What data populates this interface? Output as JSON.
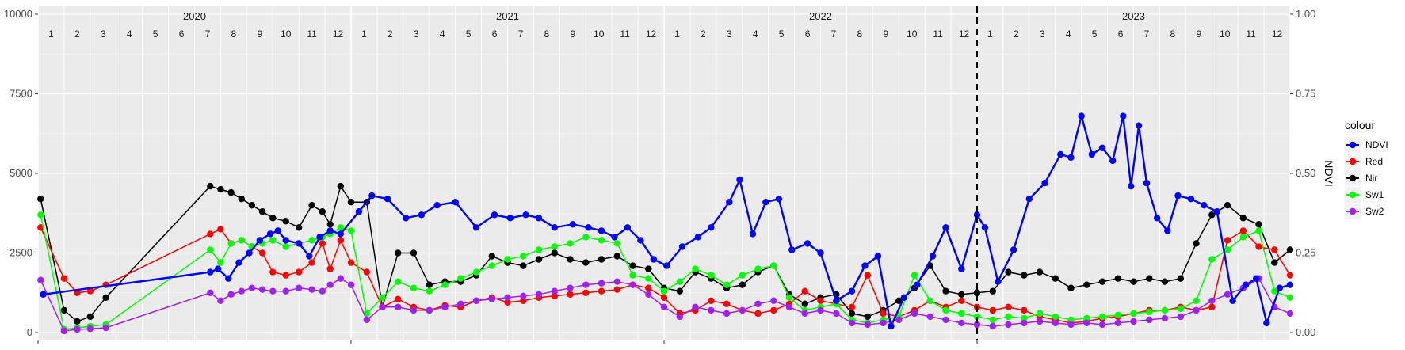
{
  "chart_data": {
    "type": "line",
    "title": "",
    "xlabel": "",
    "ylabel_left": "",
    "ylabel_right": "NDVI",
    "ylim_left": [
      0,
      10000
    ],
    "ylim_right": [
      0,
      1
    ],
    "y_ticks_left": [
      "0",
      "2500",
      "5000",
      "7500",
      "10000"
    ],
    "y_ticks_right": [
      "0.00",
      "0.25",
      "0.50",
      "0.75",
      "1.00"
    ],
    "years": [
      "2020",
      "2021",
      "2022",
      "2023"
    ],
    "months": [
      "1",
      "2",
      "3",
      "4",
      "5",
      "6",
      "7",
      "8",
      "9",
      "10",
      "11",
      "12"
    ],
    "x_range_months": [
      0,
      48
    ],
    "dashed_line_at_month": 36,
    "grid": true,
    "legend": {
      "title": "colour",
      "position": "right",
      "entries": [
        {
          "label": "NDVI",
          "color": "#0000ff"
        },
        {
          "label": "Red",
          "color": "#ff0000"
        },
        {
          "label": "Nir",
          "color": "#000000"
        },
        {
          "label": "Sw1",
          "color": "#00ff00"
        },
        {
          "label": "Sw2",
          "color": "#a020f0"
        }
      ]
    },
    "x_unit": "months since Jan 2020",
    "series": [
      {
        "name": "NDVI",
        "color": "#0000ff",
        "axis": "right",
        "x": [
          0.2,
          6.6,
          6.9,
          7.3,
          7.7,
          8.1,
          8.5,
          8.9,
          9.2,
          9.5,
          10.0,
          10.4,
          10.8,
          11.2,
          11.6,
          12.3,
          12.8,
          13.4,
          14.1,
          14.7,
          15.3,
          16.0,
          16.8,
          17.5,
          18.1,
          18.7,
          19.2,
          19.8,
          20.5,
          21.1,
          21.6,
          22.1,
          22.6,
          23.1,
          23.6,
          24.1,
          24.7,
          25.3,
          25.8,
          26.5,
          26.9,
          27.4,
          27.9,
          28.4,
          28.9,
          29.5,
          30.0,
          30.6,
          31.2,
          31.7,
          32.2,
          32.7,
          33.2,
          33.7,
          34.3,
          34.8,
          35.4,
          36.0,
          36.3,
          36.8,
          37.4,
          38.0,
          38.6,
          39.2,
          39.6,
          40.0,
          40.4,
          40.8,
          41.2,
          41.6,
          41.9,
          42.2,
          42.5,
          42.9,
          43.3,
          43.7,
          44.2,
          44.7,
          45.2,
          45.8,
          46.3,
          46.7,
          47.1,
          47.6,
          48.0
        ],
        "y": [
          0.12,
          0.19,
          0.2,
          0.17,
          0.22,
          0.25,
          0.29,
          0.31,
          0.32,
          0.29,
          0.28,
          0.24,
          0.3,
          0.32,
          0.31,
          0.38,
          0.43,
          0.42,
          0.36,
          0.37,
          0.4,
          0.41,
          0.33,
          0.37,
          0.36,
          0.37,
          0.36,
          0.33,
          0.34,
          0.33,
          0.32,
          0.3,
          0.33,
          0.29,
          0.23,
          0.21,
          0.27,
          0.3,
          0.33,
          0.41,
          0.48,
          0.31,
          0.41,
          0.42,
          0.26,
          0.28,
          0.25,
          0.1,
          0.13,
          0.21,
          0.24,
          0.02,
          0.11,
          0.15,
          0.24,
          0.33,
          0.2,
          0.37,
          0.33,
          0.16,
          0.26,
          0.42,
          0.47,
          0.56,
          0.55,
          0.68,
          0.56,
          0.58,
          0.54,
          0.68,
          0.46,
          0.65,
          0.47,
          0.36,
          0.32,
          0.43,
          0.42,
          0.4,
          0.38,
          0.1,
          0.15,
          0.17,
          0.03,
          0.14,
          0.15
        ]
      },
      {
        "name": "Red",
        "color": "#ff0000",
        "axis": "left",
        "x": [
          0.1,
          1.0,
          1.5,
          2.0,
          2.6,
          6.6,
          7.0,
          7.4,
          7.8,
          8.2,
          8.6,
          9.0,
          9.5,
          10.0,
          10.5,
          10.9,
          11.2,
          11.6,
          12.0,
          12.6,
          13.2,
          13.8,
          14.4,
          15.0,
          15.6,
          16.2,
          16.8,
          17.4,
          18.0,
          18.6,
          19.2,
          19.8,
          20.4,
          21.0,
          21.6,
          22.2,
          22.8,
          23.4,
          24.0,
          24.6,
          25.2,
          25.8,
          26.4,
          27.0,
          27.6,
          28.2,
          28.8,
          29.4,
          30.0,
          30.6,
          31.2,
          31.8,
          32.4,
          33.0,
          33.6,
          34.2,
          34.8,
          35.4,
          36.0,
          36.6,
          37.2,
          37.8,
          38.4,
          39.0,
          39.6,
          40.2,
          40.8,
          41.4,
          42.0,
          42.6,
          43.2,
          43.8,
          44.4,
          45.0,
          45.6,
          46.2,
          46.8,
          47.4,
          48.0
        ],
        "y": [
          3300,
          1700,
          1250,
          1300,
          1500,
          3100,
          3250,
          2800,
          2900,
          2700,
          2500,
          1900,
          1800,
          1900,
          2200,
          2800,
          2000,
          2900,
          2200,
          1900,
          800,
          1050,
          800,
          700,
          850,
          800,
          1000,
          1100,
          950,
          1000,
          1100,
          1150,
          1200,
          1250,
          1300,
          1350,
          1500,
          1400,
          1100,
          600,
          700,
          1000,
          900,
          700,
          600,
          700,
          900,
          1300,
          1000,
          900,
          800,
          1800,
          600,
          500,
          700,
          1000,
          800,
          1000,
          800,
          700,
          800,
          700,
          500,
          400,
          300,
          350,
          450,
          500,
          600,
          700,
          700,
          800,
          700,
          800,
          2900,
          3200,
          2700,
          2600,
          1800
        ]
      },
      {
        "name": "Nir",
        "color": "#000000",
        "axis": "left",
        "x": [
          0.1,
          1.0,
          1.5,
          2.0,
          2.6,
          6.6,
          7.0,
          7.4,
          7.8,
          8.2,
          8.6,
          9.0,
          9.5,
          10.0,
          10.5,
          10.9,
          11.2,
          11.6,
          12.0,
          12.6,
          13.2,
          13.8,
          14.4,
          15.0,
          15.6,
          16.2,
          16.8,
          17.4,
          18.0,
          18.6,
          19.2,
          19.8,
          20.4,
          21.0,
          21.6,
          22.2,
          22.8,
          23.4,
          24.0,
          24.6,
          25.2,
          25.8,
          26.4,
          27.0,
          27.6,
          28.2,
          28.8,
          29.4,
          30.0,
          30.6,
          31.2,
          31.8,
          32.4,
          33.0,
          33.6,
          34.2,
          34.8,
          35.4,
          36.0,
          36.6,
          37.2,
          37.8,
          38.4,
          39.0,
          39.6,
          40.2,
          40.8,
          41.4,
          42.0,
          42.6,
          43.2,
          43.8,
          44.4,
          45.0,
          45.6,
          46.2,
          46.8,
          47.4,
          48.0
        ],
        "y": [
          4200,
          700,
          350,
          500,
          1100,
          4600,
          4500,
          4400,
          4200,
          4000,
          3800,
          3600,
          3500,
          3300,
          4000,
          3800,
          3400,
          4600,
          4100,
          4100,
          800,
          2500,
          2500,
          1500,
          1600,
          1600,
          1800,
          2400,
          2200,
          2100,
          2300,
          2500,
          2300,
          2200,
          2300,
          2400,
          2100,
          2000,
          1400,
          1300,
          1900,
          1700,
          1400,
          1500,
          1900,
          2100,
          1200,
          900,
          1100,
          1200,
          600,
          500,
          700,
          1000,
          1400,
          2100,
          1300,
          1200,
          1250,
          1300,
          1900,
          1800,
          1900,
          1700,
          1400,
          1500,
          1600,
          1700,
          1600,
          1700,
          1600,
          1700,
          2800,
          3700,
          4000,
          3600,
          3400,
          2200,
          2600
        ]
      },
      {
        "name": "Sw1",
        "color": "#00ff00",
        "axis": "left",
        "x": [
          0.1,
          1.0,
          1.5,
          2.0,
          2.6,
          6.6,
          7.0,
          7.4,
          7.8,
          8.2,
          8.6,
          9.0,
          9.5,
          10.0,
          10.5,
          10.9,
          11.2,
          11.6,
          12.0,
          12.6,
          13.2,
          13.8,
          14.4,
          15.0,
          15.6,
          16.2,
          16.8,
          17.4,
          18.0,
          18.6,
          19.2,
          19.8,
          20.4,
          21.0,
          21.6,
          22.2,
          22.8,
          23.4,
          24.0,
          24.6,
          25.2,
          25.8,
          26.4,
          27.0,
          27.6,
          28.2,
          28.8,
          29.4,
          30.0,
          30.6,
          31.2,
          31.8,
          32.4,
          33.0,
          33.6,
          34.2,
          34.8,
          35.4,
          36.0,
          36.6,
          37.2,
          37.8,
          38.4,
          39.0,
          39.6,
          40.2,
          40.8,
          41.4,
          42.0,
          42.6,
          43.2,
          43.8,
          44.4,
          45.0,
          45.6,
          46.2,
          46.8,
          47.4,
          48.0
        ],
        "y": [
          3700,
          100,
          150,
          200,
          250,
          2600,
          2200,
          2800,
          2900,
          2700,
          2800,
          2900,
          2700,
          2800,
          2900,
          3000,
          3100,
          3300,
          3200,
          600,
          1100,
          1600,
          1400,
          1300,
          1500,
          1700,
          1900,
          2100,
          2300,
          2400,
          2600,
          2700,
          2800,
          3000,
          2900,
          2800,
          1800,
          1700,
          1300,
          1600,
          2000,
          1800,
          1500,
          1800,
          2000,
          2100,
          1100,
          700,
          800,
          900,
          400,
          300,
          400,
          500,
          1800,
          1000,
          700,
          600,
          500,
          400,
          500,
          450,
          600,
          500,
          400,
          450,
          500,
          550,
          600,
          650,
          700,
          750,
          1000,
          2300,
          2600,
          3000,
          3200,
          1300,
          1100
        ]
      },
      {
        "name": "Sw2",
        "color": "#a020f0",
        "axis": "left",
        "x": [
          0.1,
          1.0,
          1.5,
          2.0,
          2.6,
          6.6,
          7.0,
          7.4,
          7.8,
          8.2,
          8.6,
          9.0,
          9.5,
          10.0,
          10.5,
          10.9,
          11.2,
          11.6,
          12.0,
          12.6,
          13.2,
          13.8,
          14.4,
          15.0,
          15.6,
          16.2,
          16.8,
          17.4,
          18.0,
          18.6,
          19.2,
          19.8,
          20.4,
          21.0,
          21.6,
          22.2,
          22.8,
          23.4,
          24.0,
          24.6,
          25.2,
          25.8,
          26.4,
          27.0,
          27.6,
          28.2,
          28.8,
          29.4,
          30.0,
          30.6,
          31.2,
          31.8,
          32.4,
          33.0,
          33.6,
          34.2,
          34.8,
          35.4,
          36.0,
          36.6,
          37.2,
          37.8,
          38.4,
          39.0,
          39.6,
          40.2,
          40.8,
          41.4,
          42.0,
          42.6,
          43.2,
          43.8,
          44.4,
          45.0,
          45.6,
          46.2,
          46.8,
          47.4,
          48.0
        ],
        "y": [
          1650,
          50,
          100,
          120,
          150,
          1250,
          1000,
          1200,
          1300,
          1400,
          1350,
          1300,
          1300,
          1400,
          1350,
          1300,
          1500,
          1700,
          1500,
          400,
          800,
          800,
          700,
          700,
          800,
          900,
          1000,
          1050,
          1100,
          1150,
          1200,
          1300,
          1400,
          1500,
          1550,
          1600,
          1500,
          1200,
          800,
          500,
          800,
          700,
          600,
          700,
          900,
          1000,
          800,
          600,
          700,
          600,
          300,
          250,
          300,
          400,
          600,
          500,
          400,
          300,
          250,
          200,
          250,
          300,
          350,
          300,
          250,
          300,
          250,
          300,
          350,
          400,
          450,
          500,
          700,
          1000,
          1200,
          1400,
          1700,
          800,
          600
        ]
      }
    ]
  }
}
